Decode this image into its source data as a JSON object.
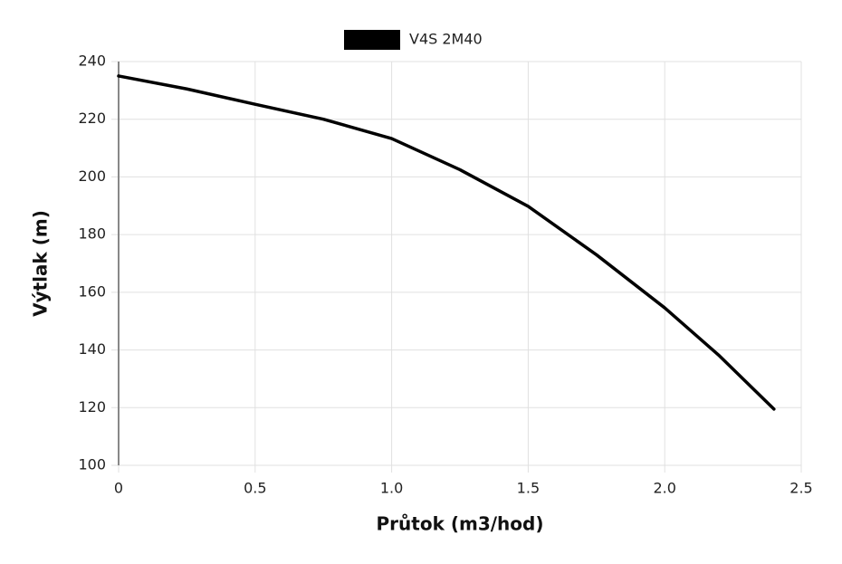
{
  "chart_data": {
    "type": "line",
    "x_label": "Průtok (m3/hod)",
    "y_label": "Výtlak (m)",
    "series": [
      {
        "name": "V4S 2M40",
        "color": "#000000",
        "x": [
          0,
          0.25,
          0.5,
          0.75,
          1.0,
          1.25,
          1.5,
          1.75,
          2.0,
          2.2,
          2.4
        ],
        "values": [
          235,
          230.5,
          225.2,
          220,
          213.3,
          202.5,
          189.8,
          173,
          154.6,
          138,
          119.5
        ]
      }
    ],
    "xlim": [
      0,
      2.5
    ],
    "xticks": [
      0,
      0.5,
      {
        "value": 1,
        "label": "1.0"
      },
      1.5,
      {
        "value": 2,
        "label": "2.0"
      },
      2.5
    ],
    "ylim": [
      100,
      240
    ],
    "yticks": [
      100,
      120,
      140,
      160,
      180,
      200,
      220,
      240
    ],
    "grid": true,
    "legend": "top"
  }
}
